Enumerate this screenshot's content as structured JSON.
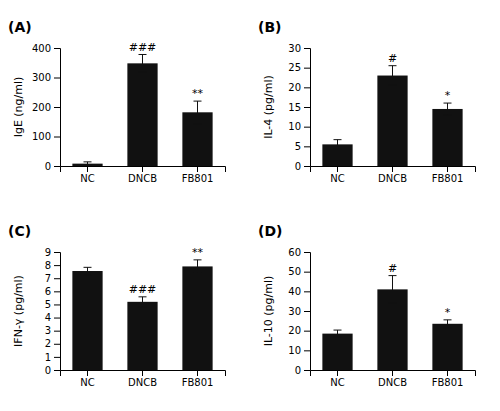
{
  "chart_data": [
    {
      "type": "bar",
      "title": "(A)",
      "ylabel": "IgE (ng/ml)",
      "categories": [
        "NC",
        "DNCB",
        "FB801"
      ],
      "values": [
        8,
        348,
        182
      ],
      "errors": [
        6,
        30,
        38
      ],
      "color": "#111111",
      "ylim": [
        0,
        400
      ],
      "yticks": [
        0,
        100,
        200,
        300,
        400
      ],
      "grid": false,
      "annotations": [
        {
          "category": "DNCB",
          "text": "###"
        },
        {
          "category": "FB801",
          "text": "**"
        }
      ]
    },
    {
      "type": "bar",
      "title": "(B)",
      "ylabel": "IL-4 (pg/ml)",
      "categories": [
        "NC",
        "DNCB",
        "FB801"
      ],
      "values": [
        5.5,
        23.0,
        14.5
      ],
      "errors": [
        1.2,
        2.5,
        1.5
      ],
      "color": "#111111",
      "ylim": [
        0,
        30
      ],
      "yticks": [
        0,
        5,
        10,
        15,
        20,
        25,
        30
      ],
      "grid": false,
      "annotations": [
        {
          "category": "DNCB",
          "text": "#"
        },
        {
          "category": "FB801",
          "text": "*"
        }
      ]
    },
    {
      "type": "bar",
      "title": "(C)",
      "ylabel": "IFN-γ (pg/ml)",
      "categories": [
        "NC",
        "DNCB",
        "FB801"
      ],
      "values": [
        7.55,
        5.2,
        7.9
      ],
      "errors": [
        0.28,
        0.38,
        0.5
      ],
      "color": "#111111",
      "ylim": [
        0,
        9
      ],
      "yticks": [
        0,
        1,
        2,
        3,
        4,
        5,
        6,
        7,
        8,
        9
      ],
      "grid": false,
      "annotations": [
        {
          "category": "DNCB",
          "text": "###"
        },
        {
          "category": "FB801",
          "text": "**"
        }
      ]
    },
    {
      "type": "bar",
      "title": "(D)",
      "ylabel": "IL-10 (pg/ml)",
      "categories": [
        "NC",
        "DNCB",
        "FB801"
      ],
      "values": [
        18.5,
        41,
        23.5
      ],
      "errors": [
        1.8,
        7,
        2.0
      ],
      "color": "#111111",
      "ylim": [
        0,
        60
      ],
      "yticks": [
        0,
        10,
        20,
        30,
        40,
        50,
        60
      ],
      "grid": false,
      "annotations": [
        {
          "category": "DNCB",
          "text": "#"
        },
        {
          "category": "FB801",
          "text": "*"
        }
      ]
    }
  ]
}
